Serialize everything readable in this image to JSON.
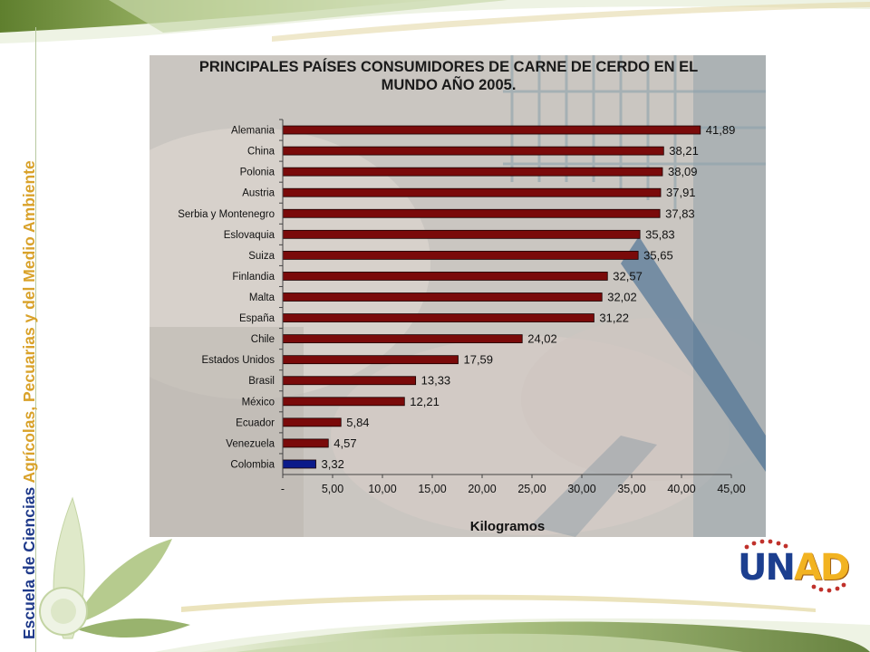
{
  "sidebar": {
    "title_part1": "Escuela de Ciencias ",
    "title_part2": "Agrícolas, Pecuarias y del Medio Ambiente"
  },
  "logo": {
    "letter_u": "U",
    "letter_n": "N",
    "letters_ad": "AD"
  },
  "colors": {
    "bar": "#7a0a0a",
    "highlight_bar": "#0b1a8a",
    "side_dark": "#1f3a8a",
    "side_light": "#d9a22a"
  },
  "chart_data": {
    "type": "bar",
    "orientation": "horizontal",
    "title_line1": "PRINCIPALES PAÍSES CONSUMIDORES DE CARNE DE CERDO EN EL",
    "title_line2": "MUNDO AÑO 2005.",
    "xlabel": "Kilogramos",
    "ylabel": "",
    "xlim": [
      0,
      45
    ],
    "grid": false,
    "categories": [
      "Alemania",
      "China",
      "Polonia",
      "Austria",
      "Serbia y Montenegro",
      "Eslovaquia",
      "Suiza",
      "Finlandia",
      "Malta",
      "España",
      "Chile",
      "Estados Unidos",
      "Brasil",
      "México",
      "Ecuador",
      "Venezuela",
      "Colombia"
    ],
    "values": [
      41.89,
      38.21,
      38.09,
      37.91,
      37.83,
      35.83,
      35.65,
      32.57,
      32.02,
      31.22,
      24.02,
      17.59,
      13.33,
      12.21,
      5.84,
      4.57,
      3.32
    ],
    "value_labels": [
      "41,89",
      "38,21",
      "38,09",
      "37,91",
      "37,83",
      "35,83",
      "35,65",
      "32,57",
      "32,02",
      "31,22",
      "24,02",
      "17,59",
      "13,33",
      "12,21",
      "5,84",
      "4,57",
      "3,32"
    ],
    "highlight_category": "Colombia",
    "x_ticks": [
      0,
      5,
      10,
      15,
      20,
      25,
      30,
      35,
      40,
      45
    ],
    "x_tick_labels": [
      "-",
      "5,00",
      "10,00",
      "15,00",
      "20,00",
      "25,00",
      "30,00",
      "35,00",
      "40,00",
      "45,00"
    ]
  }
}
